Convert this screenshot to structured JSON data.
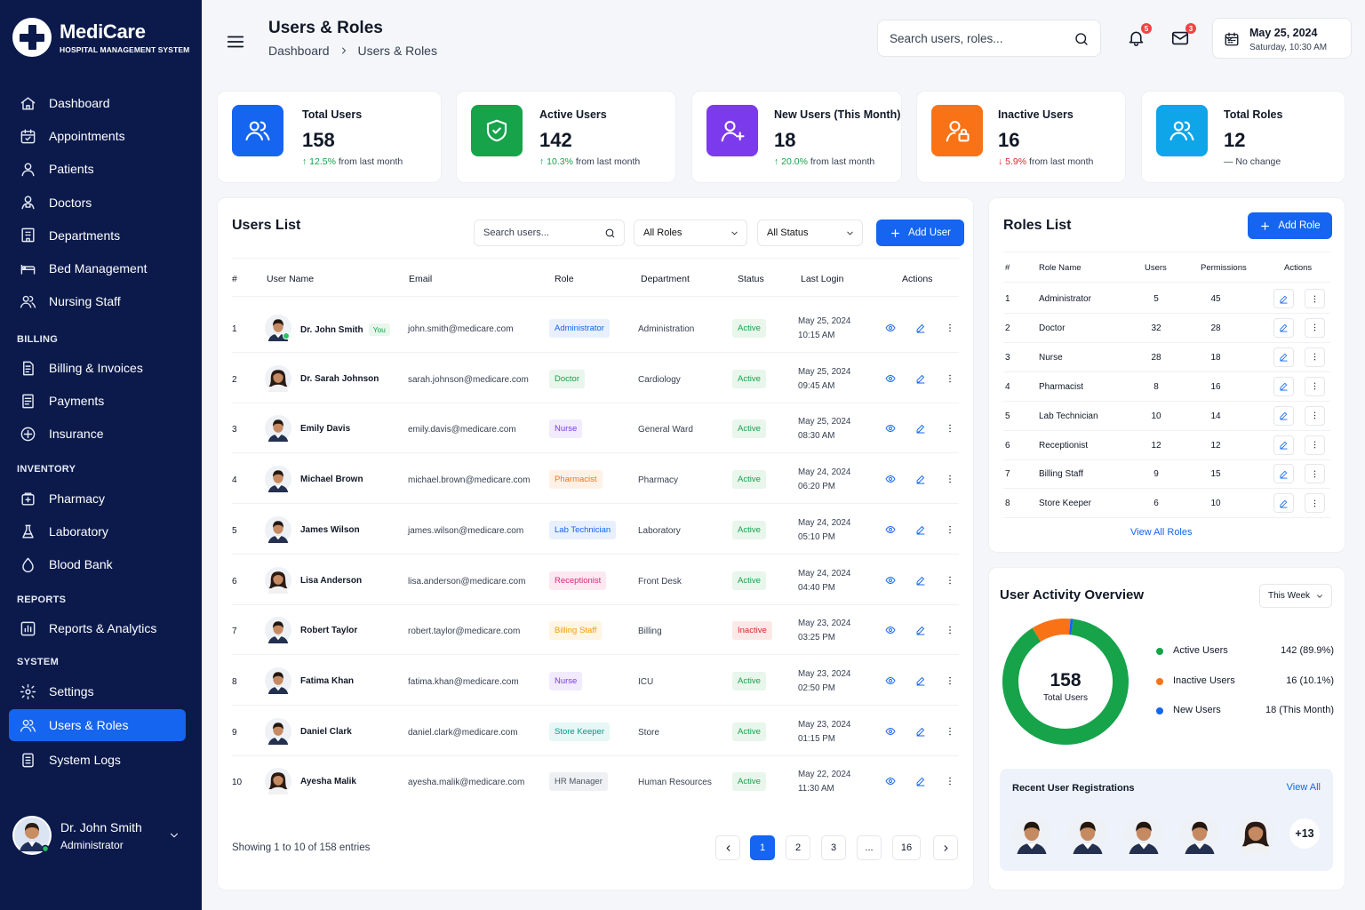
{
  "brand": {
    "name": "MediCare",
    "subtitle": "HOSPITAL MANAGEMENT SYSTEM"
  },
  "sidebar": {
    "items": [
      {
        "label": "Dashboard",
        "icon": "home-icon"
      },
      {
        "label": "Appointments",
        "icon": "calendar-icon"
      },
      {
        "label": "Patients",
        "icon": "user-icon"
      },
      {
        "label": "Doctors",
        "icon": "doctor-icon"
      },
      {
        "label": "Departments",
        "icon": "building-icon"
      },
      {
        "label": "Bed Management",
        "icon": "bed-icon"
      },
      {
        "label": "Nursing Staff",
        "icon": "users-icon"
      }
    ],
    "billing_label": "BILLING",
    "billing": [
      {
        "label": "Billing & Invoices",
        "icon": "invoice-icon"
      },
      {
        "label": "Payments",
        "icon": "payments-icon"
      },
      {
        "label": "Insurance",
        "icon": "insurance-icon"
      }
    ],
    "inventory_label": "INVENTORY",
    "inventory": [
      {
        "label": "Pharmacy",
        "icon": "pharmacy-icon"
      },
      {
        "label": "Laboratory",
        "icon": "flask-icon"
      },
      {
        "label": "Blood Bank",
        "icon": "drop-icon"
      }
    ],
    "reports_label": "REPORTS",
    "reports": [
      {
        "label": "Reports & Analytics",
        "icon": "chart-icon"
      }
    ],
    "system_label": "SYSTEM",
    "system": [
      {
        "label": "Settings",
        "icon": "gear-icon"
      },
      {
        "label": "Users & Roles",
        "icon": "users-icon",
        "active": true
      },
      {
        "label": "System Logs",
        "icon": "logs-icon"
      }
    ],
    "user": {
      "name": "Dr. John Smith",
      "role": "Administrator"
    }
  },
  "header": {
    "title": "Users & Roles",
    "breadcrumb": [
      "Dashboard",
      "Users & Roles"
    ],
    "search_placeholder": "Search users, roles...",
    "notifications_count": "5",
    "messages_count": "3",
    "date": "May 25, 2024",
    "datetime": "Saturday, 10:30 AM"
  },
  "stats": [
    {
      "label": "Total Users",
      "value": "158",
      "change": "12.5%",
      "change_dir": "up",
      "note": "from last month",
      "color": "#1565f0",
      "icon": "users-icon"
    },
    {
      "label": "Active Users",
      "value": "142",
      "change": "10.3%",
      "change_dir": "up",
      "note": "from last month",
      "color": "#16a34a",
      "icon": "shield-check-icon"
    },
    {
      "label": "New Users (This Month)",
      "value": "18",
      "change": "20.0%",
      "change_dir": "up",
      "note": "from last month",
      "color": "#7c3aed",
      "icon": "user-plus-icon"
    },
    {
      "label": "Inactive Users",
      "value": "16",
      "change": "5.9%",
      "change_dir": "down",
      "note": "from last month",
      "color": "#f97316",
      "icon": "user-lock-icon"
    },
    {
      "label": "Total Roles",
      "value": "12",
      "change": "",
      "change_dir": "none",
      "note": "No change",
      "color": "#0ea5e9",
      "icon": "roles-icon"
    }
  ],
  "users_list": {
    "title": "Users List",
    "search_placeholder": "Search users...",
    "role_filter": "All Roles",
    "status_filter": "All Status",
    "add_button": "Add User",
    "columns": [
      "#",
      "User Name",
      "Email",
      "Role",
      "Department",
      "Status",
      "Last Login",
      "Actions"
    ],
    "you_badge": "You",
    "rows": [
      {
        "num": "1",
        "name": "Dr. John Smith",
        "you": true,
        "email": "john.smith@medicare.com",
        "role": "Administrator",
        "role_color": "#1565f0",
        "role_bg": "#e8f0fe",
        "dept": "Administration",
        "status": "Active",
        "date": "May 25, 2024",
        "time": "10:15 AM",
        "avatar": "m"
      },
      {
        "num": "2",
        "name": "Dr. Sarah Johnson",
        "email": "sarah.johnson@medicare.com",
        "role": "Doctor",
        "role_color": "#16a34a",
        "role_bg": "#e8f6ec",
        "dept": "Cardiology",
        "status": "Active",
        "date": "May 25, 2024",
        "time": "09:45 AM",
        "avatar": "f"
      },
      {
        "num": "3",
        "name": "Emily Davis",
        "email": "emily.davis@medicare.com",
        "role": "Nurse",
        "role_color": "#7c3aed",
        "role_bg": "#f1ebfd",
        "dept": "General Ward",
        "status": "Active",
        "date": "May 25, 2024",
        "time": "08:30 AM",
        "avatar": "m"
      },
      {
        "num": "4",
        "name": "Michael Brown",
        "email": "michael.brown@medicare.com",
        "role": "Pharmacist",
        "role_color": "#f97316",
        "role_bg": "#fff1e6",
        "dept": "Pharmacy",
        "status": "Active",
        "date": "May 24, 2024",
        "time": "06:20 PM",
        "avatar": "m"
      },
      {
        "num": "5",
        "name": "James Wilson",
        "email": "james.wilson@medicare.com",
        "role": "Lab Technician",
        "role_color": "#1565f0",
        "role_bg": "#e8f0fe",
        "dept": "Laboratory",
        "status": "Active",
        "date": "May 24, 2024",
        "time": "05:10 PM",
        "avatar": "m"
      },
      {
        "num": "6",
        "name": "Lisa Anderson",
        "email": "lisa.anderson@medicare.com",
        "role": "Receptionist",
        "role_color": "#db2777",
        "role_bg": "#fde8f1",
        "dept": "Front Desk",
        "status": "Active",
        "date": "May 24, 2024",
        "time": "04:40 PM",
        "avatar": "f"
      },
      {
        "num": "7",
        "name": "Robert Taylor",
        "email": "robert.taylor@medicare.com",
        "role": "Billing Staff",
        "role_color": "#f59e0b",
        "role_bg": "#fef5e3",
        "dept": "Billing",
        "status": "Inactive",
        "date": "May 23, 2024",
        "time": "03:25 PM",
        "avatar": "m"
      },
      {
        "num": "8",
        "name": "Fatima Khan",
        "email": "fatima.khan@medicare.com",
        "role": "Nurse",
        "role_color": "#7c3aed",
        "role_bg": "#f1ebfd",
        "dept": "ICU",
        "status": "Active",
        "date": "May 23, 2024",
        "time": "02:50 PM",
        "avatar": "m"
      },
      {
        "num": "9",
        "name": "Daniel Clark",
        "email": "daniel.clark@medicare.com",
        "role": "Store Keeper",
        "role_color": "#0d9488",
        "role_bg": "#e6f7f5",
        "dept": "Store",
        "status": "Active",
        "date": "May 23, 2024",
        "time": "01:15 PM",
        "avatar": "m"
      },
      {
        "num": "10",
        "name": "Ayesha Malik",
        "email": "ayesha.malik@medicare.com",
        "role": "HR Manager",
        "role_color": "#4b5563",
        "role_bg": "#eef0f3",
        "dept": "Human Resources",
        "status": "Active",
        "date": "May 22, 2024",
        "time": "11:30 AM",
        "avatar": "f"
      }
    ],
    "showing": "Showing 1 to 10 of 158 entries",
    "pages": [
      "1",
      "2",
      "3",
      "...",
      "16"
    ],
    "current_page": "1"
  },
  "roles_list": {
    "title": "Roles List",
    "add_button": "Add Role",
    "columns": [
      "#",
      "Role Name",
      "Users",
      "Permissions",
      "Actions"
    ],
    "rows": [
      {
        "num": "1",
        "name": "Administrator",
        "users": "5",
        "permissions": "45"
      },
      {
        "num": "2",
        "name": "Doctor",
        "users": "32",
        "permissions": "28"
      },
      {
        "num": "3",
        "name": "Nurse",
        "users": "28",
        "permissions": "18"
      },
      {
        "num": "4",
        "name": "Pharmacist",
        "users": "8",
        "permissions": "16"
      },
      {
        "num": "5",
        "name": "Lab Technician",
        "users": "10",
        "permissions": "14"
      },
      {
        "num": "6",
        "name": "Receptionist",
        "users": "12",
        "permissions": "12"
      },
      {
        "num": "7",
        "name": "Billing Staff",
        "users": "9",
        "permissions": "15"
      },
      {
        "num": "8",
        "name": "Store Keeper",
        "users": "6",
        "permissions": "10"
      }
    ],
    "view_all": "View All Roles"
  },
  "activity": {
    "title": "User Activity Overview",
    "period": "This Week",
    "center_value": "158",
    "center_label": "Total Users",
    "legend": [
      {
        "name": "Active Users",
        "value": "142 (89.9%)",
        "color": "#16a34a"
      },
      {
        "name": "Inactive Users",
        "value": "16 (10.1%)",
        "color": "#f97316"
      },
      {
        "name": "New Users",
        "value": "18 (This Month)",
        "color": "#1565f0"
      }
    ],
    "segments": [
      {
        "value": 142,
        "color": "#16a34a"
      },
      {
        "value": 16,
        "color": "#f97316"
      },
      {
        "value": 1.2,
        "color": "#1565f0"
      }
    ],
    "recent_title": "Recent User Registrations",
    "recent_view_all": "View All",
    "recent_avatars": [
      "m",
      "m",
      "m",
      "m",
      "f"
    ],
    "recent_more": "+13"
  }
}
